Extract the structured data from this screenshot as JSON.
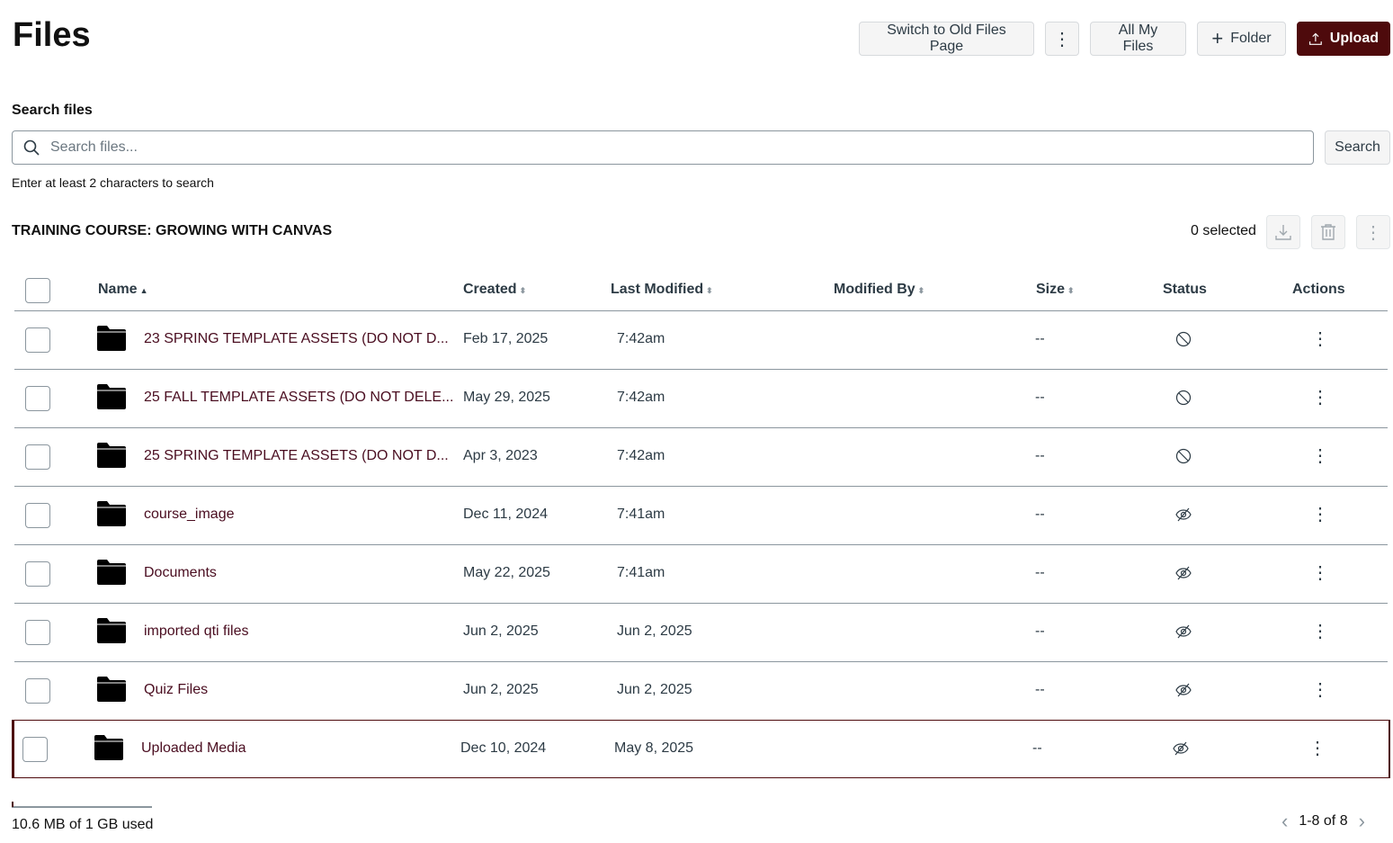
{
  "header": {
    "title": "Files",
    "switch_label": "Switch to Old Files Page",
    "all_files_label": "All My Files",
    "folder_label": "Folder",
    "upload_label": "Upload"
  },
  "search": {
    "label": "Search files",
    "placeholder": "Search files...",
    "button": "Search",
    "hint": "Enter at least 2 characters to search"
  },
  "context": {
    "course": "TRAINING COURSE: GROWING WITH CANVAS",
    "selected": "0 selected"
  },
  "columns": [
    "Name",
    "Created",
    "Last Modified",
    "Modified By",
    "Size",
    "Status",
    "Actions"
  ],
  "rows": [
    {
      "name": "23 SPRING TEMPLATE ASSETS (DO NOT D...",
      "created": "Feb 17, 2025",
      "modified": "7:42am",
      "size": "--",
      "status": "unpublished"
    },
    {
      "name": "25 FALL TEMPLATE ASSETS (DO NOT DELE...",
      "created": "May 29, 2025",
      "modified": "7:42am",
      "size": "--",
      "status": "unpublished"
    },
    {
      "name": "25 SPRING TEMPLATE ASSETS (DO NOT D...",
      "created": "Apr 3, 2023",
      "modified": "7:42am",
      "size": "--",
      "status": "unpublished"
    },
    {
      "name": "course_image",
      "created": "Dec 11, 2024",
      "modified": "7:41am",
      "size": "--",
      "status": "hidden"
    },
    {
      "name": "Documents",
      "created": "May 22, 2025",
      "modified": "7:41am",
      "size": "--",
      "status": "hidden"
    },
    {
      "name": "imported qti files",
      "created": "Jun 2, 2025",
      "modified": "Jun 2, 2025",
      "size": "--",
      "status": "hidden"
    },
    {
      "name": "Quiz Files",
      "created": "Jun 2, 2025",
      "modified": "Jun 2, 2025",
      "size": "--",
      "status": "hidden"
    },
    {
      "name": "Uploaded Media",
      "created": "Dec 10, 2024",
      "modified": "May 8, 2025",
      "size": "--",
      "status": "hidden"
    }
  ],
  "footer": {
    "usage": "10.6 MB of 1 GB used",
    "usage_percent": 1,
    "pagination": "1-8 of 8"
  },
  "colors": {
    "primary": "#4e0a0c",
    "link": "#4a0d20"
  }
}
